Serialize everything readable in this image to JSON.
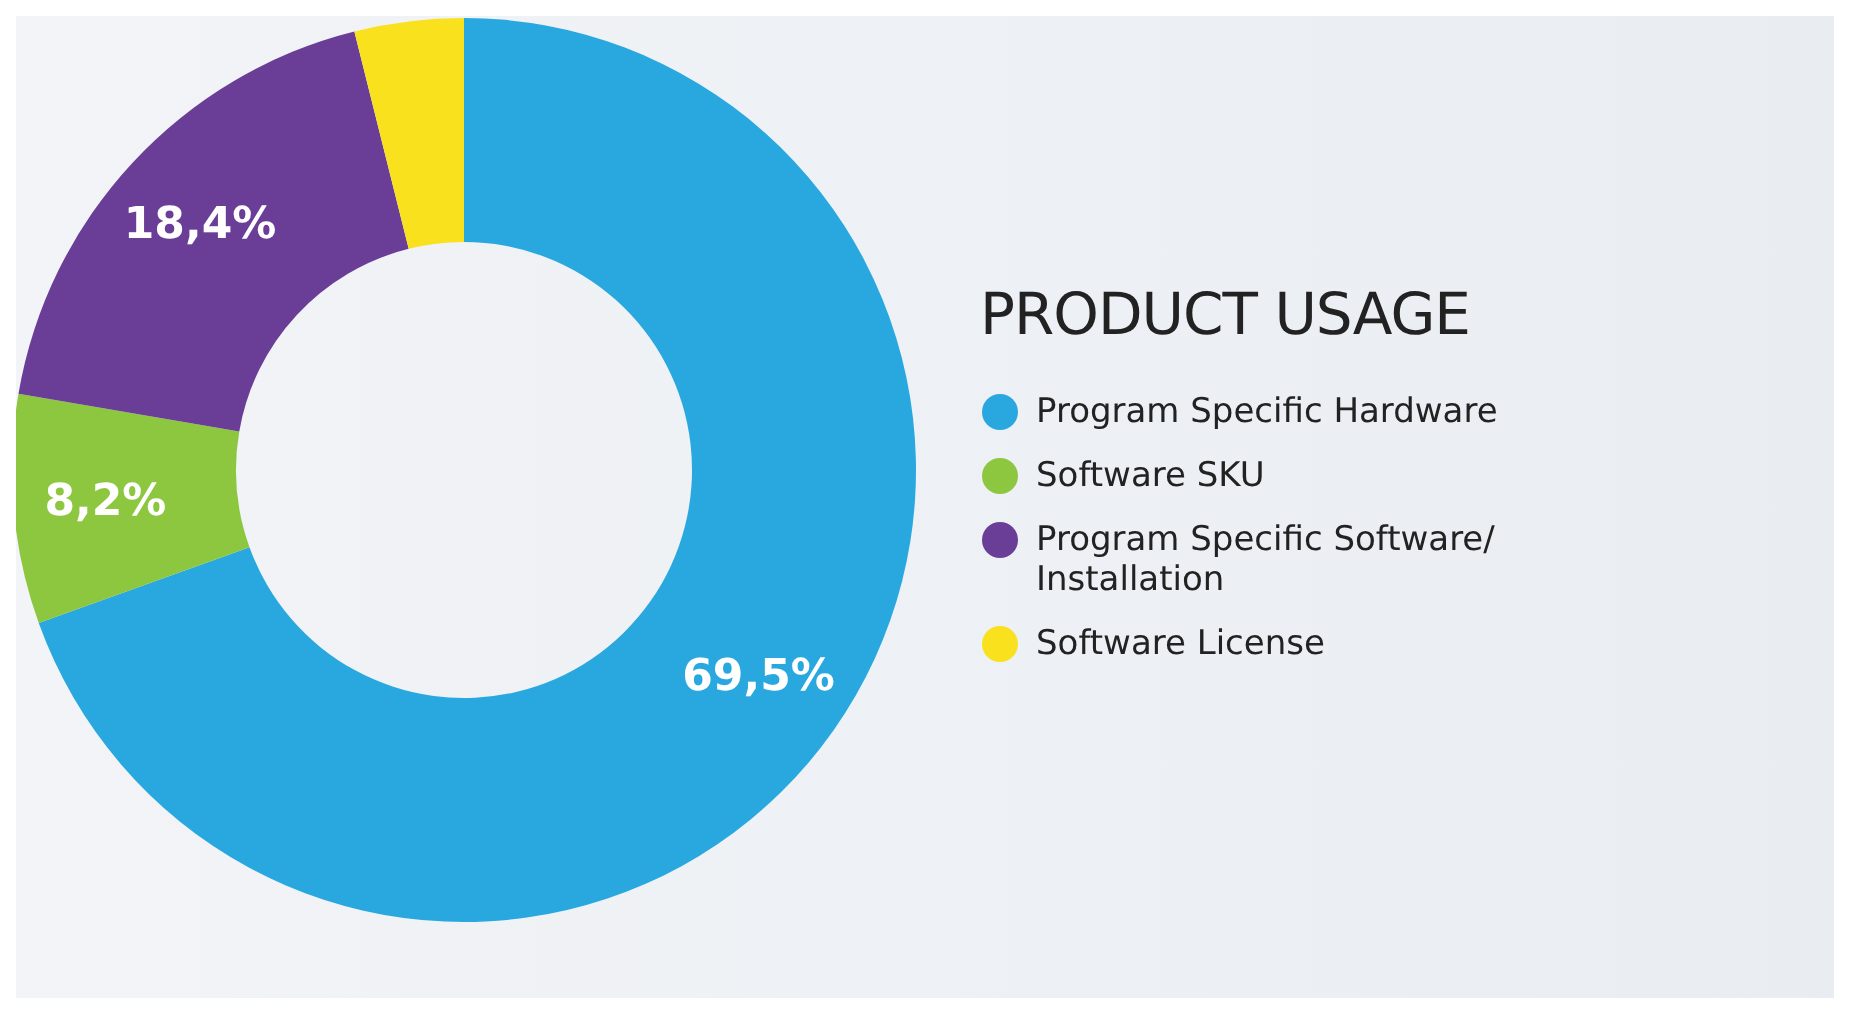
{
  "chart_data": {
    "type": "donut",
    "title": "PRODUCT USAGE",
    "categories": [
      "Program Specific Hardware",
      "Software SKU",
      "Program Specific Software/ Installation",
      "Software License"
    ],
    "values": [
      69.5,
      8.2,
      18.4,
      3.9
    ],
    "colors": [
      "#29a8e0",
      "#8dc63f",
      "#6a3d97",
      "#f9e11e"
    ],
    "value_labels": [
      "69,5%",
      "8,2%",
      "18,4%",
      null
    ],
    "legend": "right"
  }
}
